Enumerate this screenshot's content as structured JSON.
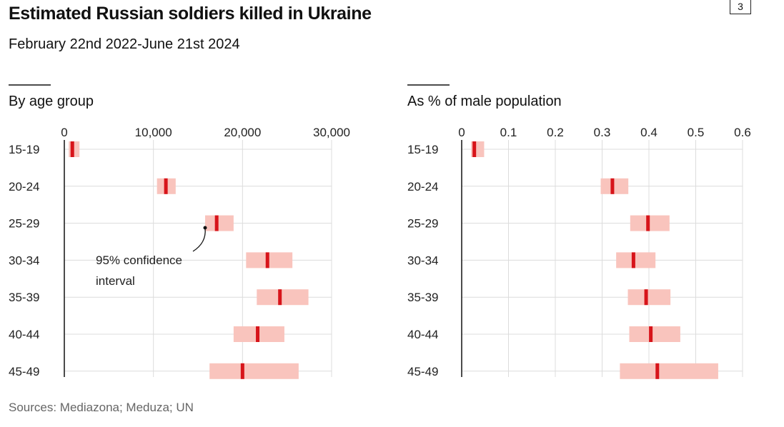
{
  "title": "Estimated Russian soldiers killed in Ukraine",
  "subtitle": "February 22nd 2022-June 21st 2024",
  "badge": "3",
  "source": "Sources: Mediazona; Meduza; UN",
  "annotation": {
    "line1": "95% confidence",
    "line2": "interval"
  },
  "colors": {
    "point": "#d7141a",
    "interval": "#f9c4bd",
    "grid": "#dcdcdc",
    "axis": "#111111"
  },
  "chart_data": [
    {
      "type": "interval",
      "title": "By age group",
      "categories": [
        "15-19",
        "20-24",
        "25-29",
        "30-34",
        "35-39",
        "40-44",
        "45-49"
      ],
      "xlim": [
        0,
        30000
      ],
      "ticks": [
        0,
        10000,
        20000,
        30000
      ],
      "tick_labels": [
        "0",
        "10,000",
        "20,000",
        "30,000"
      ],
      "estimate": [
        900,
        11400,
        17100,
        22800,
        24200,
        21700,
        20000
      ],
      "low": [
        500,
        10400,
        15800,
        20400,
        21600,
        19000,
        16300
      ],
      "high": [
        1700,
        12500,
        19000,
        25600,
        27400,
        24700,
        26300
      ],
      "grid": true
    },
    {
      "type": "interval",
      "title": "As % of male population",
      "categories": [
        "15-19",
        "20-24",
        "25-29",
        "30-34",
        "35-39",
        "40-44",
        "45-49"
      ],
      "xlim": [
        0,
        0.6
      ],
      "ticks": [
        0,
        0.1,
        0.2,
        0.3,
        0.4,
        0.5,
        0.6
      ],
      "tick_labels": [
        "0",
        "0.1",
        "0.2",
        "0.3",
        "0.4",
        "0.5",
        "0.6"
      ],
      "estimate": [
        0.027,
        0.322,
        0.398,
        0.367,
        0.394,
        0.404,
        0.418
      ],
      "low": [
        0.02,
        0.297,
        0.36,
        0.33,
        0.355,
        0.358,
        0.338
      ],
      "high": [
        0.048,
        0.356,
        0.444,
        0.414,
        0.446,
        0.467,
        0.548
      ],
      "grid": true
    }
  ]
}
